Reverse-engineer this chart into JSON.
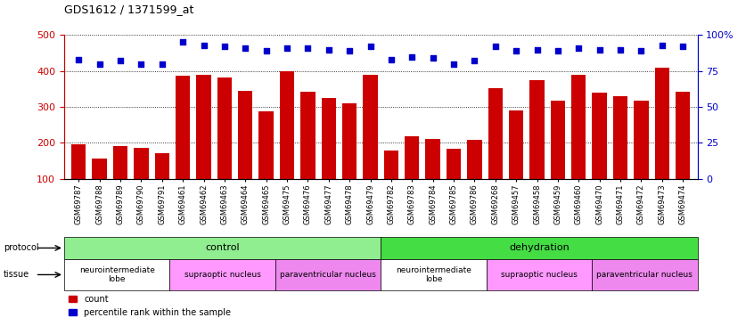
{
  "title": "GDS1612 / 1371599_at",
  "samples": [
    "GSM69787",
    "GSM69788",
    "GSM69789",
    "GSM69790",
    "GSM69791",
    "GSM69461",
    "GSM69462",
    "GSM69463",
    "GSM69464",
    "GSM69465",
    "GSM69475",
    "GSM69476",
    "GSM69477",
    "GSM69478",
    "GSM69479",
    "GSM69782",
    "GSM69783",
    "GSM69784",
    "GSM69785",
    "GSM69786",
    "GSM69268",
    "GSM69457",
    "GSM69458",
    "GSM69459",
    "GSM69460",
    "GSM69470",
    "GSM69471",
    "GSM69472",
    "GSM69473",
    "GSM69474"
  ],
  "bar_values": [
    197,
    155,
    190,
    185,
    170,
    387,
    390,
    382,
    345,
    288,
    398,
    342,
    326,
    311,
    390,
    178,
    218,
    210,
    183,
    207,
    352,
    290,
    375,
    318,
    390,
    340,
    330,
    317,
    410,
    342
  ],
  "percentile_values": [
    83,
    80,
    82,
    80,
    80,
    95,
    93,
    92,
    91,
    89,
    91,
    91,
    90,
    89,
    92,
    83,
    85,
    84,
    80,
    82,
    92,
    89,
    90,
    89,
    91,
    90,
    90,
    89,
    93,
    92
  ],
  "bar_color": "#cc0000",
  "percentile_color": "#0000cc",
  "ylim_left": [
    100,
    500
  ],
  "ylim_right": [
    0,
    100
  ],
  "yticks_left": [
    100,
    200,
    300,
    400,
    500
  ],
  "yticks_right": [
    0,
    25,
    50,
    75,
    100
  ],
  "ytick_labels_right": [
    "0",
    "25",
    "50",
    "75",
    "100%"
  ],
  "protocol_groups": [
    {
      "label": "control",
      "start": 0,
      "end": 14,
      "color": "#90ee90"
    },
    {
      "label": "dehydration",
      "start": 15,
      "end": 29,
      "color": "#44dd44"
    }
  ],
  "tissue_groups": [
    {
      "label": "neurointermediate\nlobe",
      "start": 0,
      "end": 4,
      "color": "#ffffff"
    },
    {
      "label": "supraoptic nucleus",
      "start": 5,
      "end": 9,
      "color": "#ff99ff"
    },
    {
      "label": "paraventricular nucleus",
      "start": 10,
      "end": 14,
      "color": "#ee88ee"
    },
    {
      "label": "neurointermediate\nlobe",
      "start": 15,
      "end": 19,
      "color": "#ffffff"
    },
    {
      "label": "supraoptic nucleus",
      "start": 20,
      "end": 24,
      "color": "#ff99ff"
    },
    {
      "label": "paraventricular nucleus",
      "start": 25,
      "end": 29,
      "color": "#ee88ee"
    }
  ],
  "legend_count_color": "#cc0000",
  "legend_pct_color": "#0000cc",
  "background_color": "#ffffff"
}
